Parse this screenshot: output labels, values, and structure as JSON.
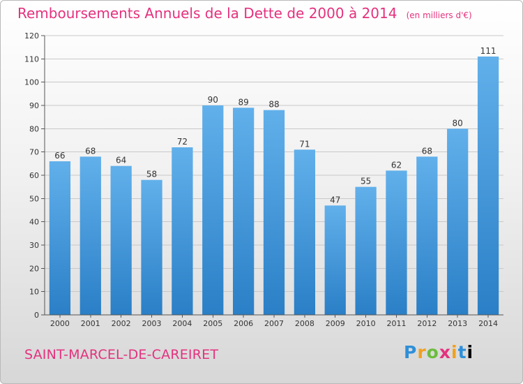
{
  "header": {
    "title": "Remboursements Annuels de la Dette de 2000 à 2014",
    "unit": "(en milliers d'€)"
  },
  "footer": {
    "commune": "SAINT-MARCEL-DE-CAREIRET",
    "logo_letters": [
      "P",
      "r",
      "o",
      "x",
      "i",
      "t",
      "i"
    ]
  },
  "colors": {
    "title": "#e4317e",
    "bar_top": "#61b0eb",
    "bar_bottom": "#2a7fc6",
    "grid": "#c8c8c8"
  },
  "chart_data": {
    "type": "bar",
    "title": "Remboursements Annuels de la Dette de 2000 à 2014",
    "subtitle": "(en milliers d'€)",
    "categories": [
      "2000",
      "2001",
      "2002",
      "2003",
      "2004",
      "2005",
      "2006",
      "2007",
      "2008",
      "2009",
      "2010",
      "2011",
      "2012",
      "2013",
      "2014"
    ],
    "values": [
      66,
      68,
      64,
      58,
      72,
      90,
      89,
      88,
      71,
      47,
      55,
      62,
      68,
      80,
      111
    ],
    "ylim": [
      0,
      120
    ],
    "yticks": [
      0,
      10,
      20,
      30,
      40,
      50,
      60,
      70,
      80,
      90,
      100,
      110,
      120
    ],
    "grid": true,
    "data_labels": true
  }
}
